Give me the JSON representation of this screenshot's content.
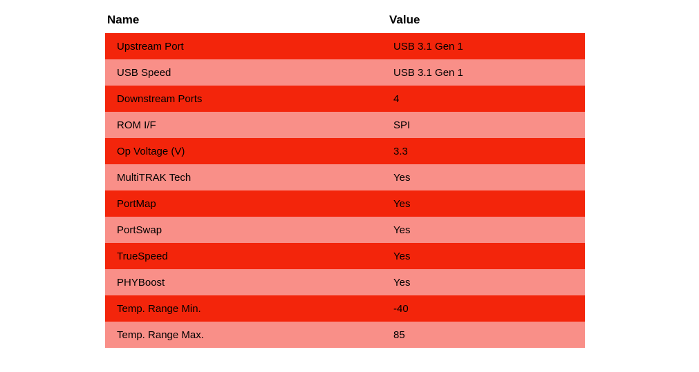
{
  "chart_data": {
    "type": "table",
    "title": "",
    "columns": [
      "Name",
      "Value"
    ],
    "rows": [
      [
        "Upstream Port",
        "USB 3.1 Gen 1"
      ],
      [
        "USB Speed",
        "USB 3.1 Gen 1"
      ],
      [
        "Downstream Ports",
        "4"
      ],
      [
        "ROM I/F",
        "SPI"
      ],
      [
        "Op Voltage (V)",
        "3.3"
      ],
      [
        "MultiTRAK Tech",
        "Yes"
      ],
      [
        "PortMap",
        "Yes"
      ],
      [
        "PortSwap",
        "Yes"
      ],
      [
        "TrueSpeed",
        "Yes"
      ],
      [
        "PHYBoost",
        "Yes"
      ],
      [
        "Temp. Range Min.",
        "-40"
      ],
      [
        "Temp. Range Max.",
        "85"
      ]
    ],
    "layout": {
      "striped": true,
      "header_background": "#ffffff",
      "stripe_color_odd": "#f3250b",
      "stripe_color_even": "#f98f88",
      "text_color": "#000000"
    }
  }
}
